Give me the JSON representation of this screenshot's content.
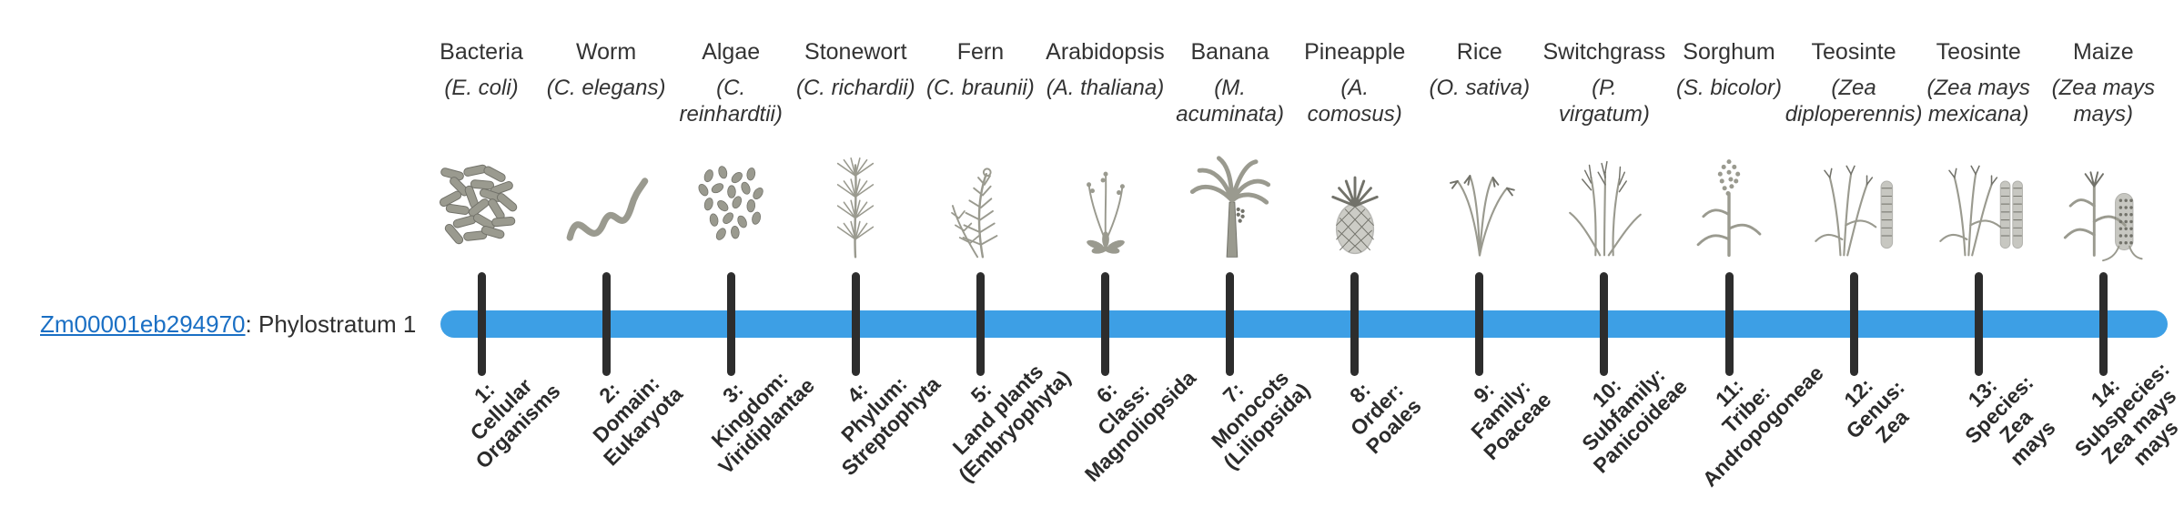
{
  "gene": {
    "id": "Zm00001eb294970",
    "suffix": ": Phylostratum 1"
  },
  "colors": {
    "bar": "#3d9fe5",
    "tick": "#2d2d2d",
    "link": "#1a6fc4",
    "illustration": "#9a9a8f",
    "illustration_stroke": "#72726a"
  },
  "organisms": [
    {
      "name": "Bacteria",
      "sci": "(E. coli)",
      "icon": "bacteria",
      "stratum": "1:\nCellular\nOrganisms"
    },
    {
      "name": "Worm",
      "sci": "(C. elegans)",
      "icon": "worm",
      "stratum": "2:\nDomain:\nEukaryota"
    },
    {
      "name": "Algae",
      "sci": "(C.\nreinhardtii)",
      "icon": "algae",
      "stratum": "3:\nKingdom:\nViridiplantae"
    },
    {
      "name": "Stonewort",
      "sci": "(C. richardii)",
      "icon": "stonewort",
      "stratum": "4:\nPhylum:\nStreptophyta"
    },
    {
      "name": "Fern",
      "sci": "(C. braunii)",
      "icon": "fern",
      "stratum": "5:\nLand plants\n(Embryophyta)"
    },
    {
      "name": "Arabidopsis",
      "sci": "(A. thaliana)",
      "icon": "arabidopsis",
      "stratum": "6:\nClass:\nMagnoliopsida"
    },
    {
      "name": "Banana",
      "sci": "(M.\nacuminata)",
      "icon": "banana",
      "stratum": "7:\nMonocots\n(Liliopsida)"
    },
    {
      "name": "Pineapple",
      "sci": "(A.\ncomosus)",
      "icon": "pineapple",
      "stratum": "8:\nOrder:\nPoales"
    },
    {
      "name": "Rice",
      "sci": "(O. sativa)",
      "icon": "rice",
      "stratum": "9:\nFamily:\nPoaceae"
    },
    {
      "name": "Switchgrass",
      "sci": "(P.\nvirgatum)",
      "icon": "switchgrass",
      "stratum": "10:\nSubfamily:\nPanicoideae"
    },
    {
      "name": "Sorghum",
      "sci": "(S. bicolor)",
      "icon": "sorghum",
      "stratum": "11:\nTribe:\nAndropogoneae"
    },
    {
      "name": "Teosinte",
      "sci": "(Zea\ndiploperennis)",
      "icon": "teosinte-diplo",
      "stratum": "12:\nGenus:\nZea"
    },
    {
      "name": "Teosinte",
      "sci": "(Zea mays\nmexicana)",
      "icon": "teosinte-mexicana",
      "stratum": "13:\nSpecies:\nZea\nmays"
    },
    {
      "name": "Maize",
      "sci": "(Zea mays\nmays)",
      "icon": "maize",
      "stratum": "14:\nSubspecies:\nZea mays\nmays"
    }
  ],
  "layout_values": {
    "first_tick_x": 529,
    "tick_step": 137.1
  }
}
